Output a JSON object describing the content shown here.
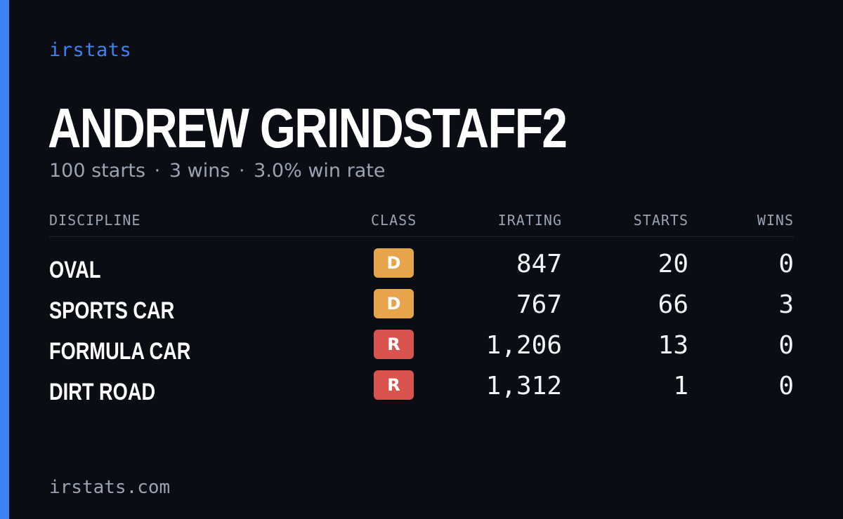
{
  "brand": "irstats",
  "driver": {
    "name": "ANDREW GRINDSTAFF2",
    "starts_text": "100 starts",
    "wins_text": "3 wins",
    "win_rate_text": "3.0% win rate",
    "separator": "·"
  },
  "table": {
    "headers": {
      "discipline": "DISCIPLINE",
      "class": "CLASS",
      "irating": "IRATING",
      "starts": "STARTS",
      "wins": "WINS"
    },
    "rows": [
      {
        "discipline": "OVAL",
        "class": "D",
        "irating": "847",
        "starts": "20",
        "wins": "0"
      },
      {
        "discipline": "SPORTS CAR",
        "class": "D",
        "irating": "767",
        "starts": "66",
        "wins": "3"
      },
      {
        "discipline": "FORMULA CAR",
        "class": "R",
        "irating": "1,206",
        "starts": "13",
        "wins": "0"
      },
      {
        "discipline": "DIRT ROAD",
        "class": "R",
        "irating": "1,312",
        "starts": "1",
        "wins": "0"
      }
    ]
  },
  "footer": "irstats.com",
  "colors": {
    "background": "#0a0d14",
    "accent": "#3b82f6",
    "class_D": "#e8a44a",
    "class_R": "#d9534f"
  }
}
